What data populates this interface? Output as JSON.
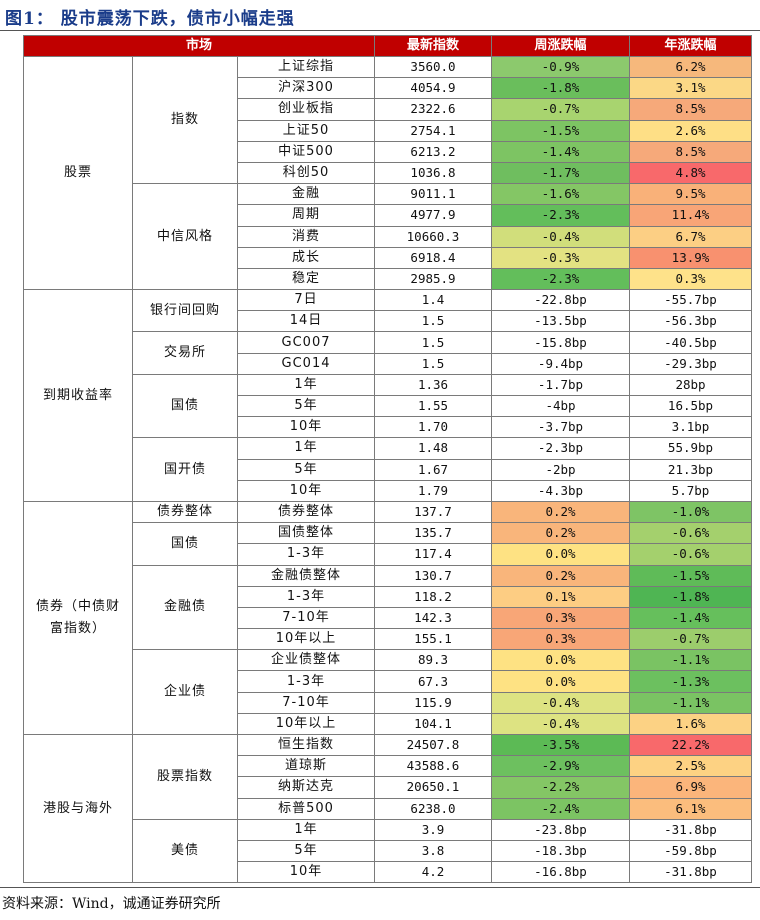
{
  "title": "图1： 股市震荡下跌，债市小幅走强",
  "header": {
    "market": "市场",
    "latest": "最新指数",
    "weekly": "周涨跌幅",
    "annual": "年涨跌幅"
  },
  "footer": "资料来源：Wind，诚通证券研究所",
  "sections": [
    {
      "name": "股票",
      "groups": [
        {
          "name": "指数",
          "rows": [
            {
              "item": "上证综指",
              "latest": "3560.0",
              "weekly": "-0.9%",
              "annual": "6.2%",
              "wc": "#8cc96d",
              "ac": "#f6b87c"
            },
            {
              "item": "沪深300",
              "latest": "4054.9",
              "weekly": "-1.8%",
              "annual": "3.1%",
              "wc": "#6abe5c",
              "ac": "#fbd886"
            },
            {
              "item": "创业板指",
              "latest": "2322.6",
              "weekly": "-0.7%",
              "annual": "8.5%",
              "wc": "#a8d46f",
              "ac": "#f6a97a"
            },
            {
              "item": "上证50",
              "latest": "2754.1",
              "weekly": "-1.5%",
              "annual": "2.6%",
              "wc": "#7dc463",
              "ac": "#fedf86"
            },
            {
              "item": "中证500",
              "latest": "6213.2",
              "weekly": "-1.4%",
              "annual": "8.5%",
              "wc": "#7dc463",
              "ac": "#f6a97a"
            },
            {
              "item": "科创50",
              "latest": "1036.8",
              "weekly": "-1.7%",
              "annual": "4.8%",
              "wc": "#6fbe5f",
              "ac": "#f8696b"
            }
          ]
        },
        {
          "name": "中信风格",
          "rows": [
            {
              "item": "金融",
              "latest": "9011.1",
              "weekly": "-1.6%",
              "annual": "9.5%",
              "wc": "#84c665",
              "ac": "#f9b179"
            },
            {
              "item": "周期",
              "latest": "4977.9",
              "weekly": "-2.3%",
              "annual": "11.4%",
              "wc": "#63be5b",
              "ac": "#f8a577"
            },
            {
              "item": "消费",
              "latest": "10660.3",
              "weekly": "-0.4%",
              "annual": "6.7%",
              "wc": "#d1de7b",
              "ac": "#fccf84"
            },
            {
              "item": "成长",
              "latest": "6918.4",
              "weekly": "-0.3%",
              "annual": "13.9%",
              "wc": "#e3e282",
              "ac": "#f8916f"
            },
            {
              "item": "稳定",
              "latest": "2985.9",
              "weekly": "-2.3%",
              "annual": "0.3%",
              "wc": "#63be5b",
              "ac": "#fee28a"
            }
          ]
        }
      ]
    },
    {
      "name": "到期收益率",
      "groups": [
        {
          "name": "银行间回购",
          "rows": [
            {
              "item": "7日",
              "latest": "1.4",
              "weekly": "-22.8bp",
              "annual": "-55.7bp"
            },
            {
              "item": "14日",
              "latest": "1.5",
              "weekly": "-13.5bp",
              "annual": "-56.3bp"
            }
          ]
        },
        {
          "name": "交易所",
          "rows": [
            {
              "item": "GC007",
              "latest": "1.5",
              "weekly": "-15.8bp",
              "annual": "-40.5bp"
            },
            {
              "item": "GC014",
              "latest": "1.5",
              "weekly": "-9.4bp",
              "annual": "-29.3bp"
            }
          ]
        },
        {
          "name": "国债",
          "rows": [
            {
              "item": "1年",
              "latest": "1.36",
              "weekly": "-1.7bp",
              "annual": "28bp"
            },
            {
              "item": "5年",
              "latest": "1.55",
              "weekly": "-4bp",
              "annual": "16.5bp"
            },
            {
              "item": "10年",
              "latest": "1.70",
              "weekly": "-3.7bp",
              "annual": "3.1bp"
            }
          ]
        },
        {
          "name": "国开债",
          "rows": [
            {
              "item": "1年",
              "latest": "1.48",
              "weekly": "-2.3bp",
              "annual": "55.9bp"
            },
            {
              "item": "5年",
              "latest": "1.67",
              "weekly": "-2bp",
              "annual": "21.3bp"
            },
            {
              "item": "10年",
              "latest": "1.79",
              "weekly": "-4.3bp",
              "annual": "5.7bp"
            }
          ]
        }
      ]
    },
    {
      "name": "债券（中债财富指数）",
      "groups": [
        {
          "name": "债券整体",
          "rows": [
            {
              "item": "债券整体",
              "latest": "137.7",
              "weekly": "0.2%",
              "annual": "-1.0%",
              "wc": "#f9b57b",
              "ac": "#7ec465"
            }
          ]
        },
        {
          "name": "国债",
          "rows": [
            {
              "item": "国债整体",
              "latest": "135.7",
              "weekly": "0.2%",
              "annual": "-0.6%",
              "wc": "#f9b57b",
              "ac": "#a4d06d"
            },
            {
              "item": "1-3年",
              "latest": "117.4",
              "weekly": "0.0%",
              "annual": "-0.6%",
              "wc": "#fee283",
              "ac": "#a4d06d"
            }
          ]
        },
        {
          "name": "金融债",
          "rows": [
            {
              "item": "金融债整体",
              "latest": "130.7",
              "weekly": "0.2%",
              "annual": "-1.5%",
              "wc": "#f9b57b",
              "ac": "#5fbb58"
            },
            {
              "item": "1-3年",
              "latest": "118.2",
              "weekly": "0.1%",
              "annual": "-1.8%",
              "wc": "#fdcd83",
              "ac": "#4fb553"
            },
            {
              "item": "7-10年",
              "latest": "142.3",
              "weekly": "0.3%",
              "annual": "-1.4%",
              "wc": "#f8a677",
              "ac": "#66bf5c"
            },
            {
              "item": "10年以上",
              "latest": "155.1",
              "weekly": "0.3%",
              "annual": "-0.7%",
              "wc": "#f8a677",
              "ac": "#9ccd6c"
            }
          ]
        },
        {
          "name": "企业债",
          "rows": [
            {
              "item": "企业债整体",
              "latest": "89.3",
              "weekly": "0.0%",
              "annual": "-1.1%",
              "wc": "#fee283",
              "ac": "#7ac363"
            },
            {
              "item": "1-3年",
              "latest": "67.3",
              "weekly": "0.0%",
              "annual": "-1.3%",
              "wc": "#fee283",
              "ac": "#6cc05f"
            },
            {
              "item": "7-10年",
              "latest": "115.9",
              "weekly": "-0.4%",
              "annual": "-1.1%",
              "wc": "#dde382",
              "ac": "#7ac363"
            },
            {
              "item": "10年以上",
              "latest": "104.1",
              "weekly": "-0.4%",
              "annual": "1.6%",
              "wc": "#dde382",
              "ac": "#fcd284"
            }
          ]
        }
      ]
    },
    {
      "name": "港股与海外",
      "groups": [
        {
          "name": "股票指数",
          "rows": [
            {
              "item": "恒生指数",
              "latest": "24507.8",
              "weekly": "-3.5%",
              "annual": "22.2%",
              "wc": "#5cba55",
              "ac": "#f8696b"
            },
            {
              "item": "道琼斯",
              "latest": "43588.6",
              "weekly": "-2.9%",
              "annual": "2.5%",
              "wc": "#6dc05f",
              "ac": "#fdd283"
            },
            {
              "item": "纳斯达克",
              "latest": "20650.1",
              "weekly": "-2.2%",
              "annual": "6.9%",
              "wc": "#84c665",
              "ac": "#fbb57b"
            },
            {
              "item": "标普500",
              "latest": "6238.0",
              "weekly": "-2.4%",
              "annual": "6.1%",
              "wc": "#7cc463",
              "ac": "#fbbd7d"
            }
          ]
        },
        {
          "name": "美债",
          "rows": [
            {
              "item": "1年",
              "latest": "3.9",
              "weekly": "-23.8bp",
              "annual": "-31.8bp"
            },
            {
              "item": "5年",
              "latest": "3.8",
              "weekly": "-18.3bp",
              "annual": "-59.8bp"
            },
            {
              "item": "10年",
              "latest": "4.2",
              "weekly": "-16.8bp",
              "annual": "-31.8bp"
            }
          ]
        }
      ]
    }
  ]
}
